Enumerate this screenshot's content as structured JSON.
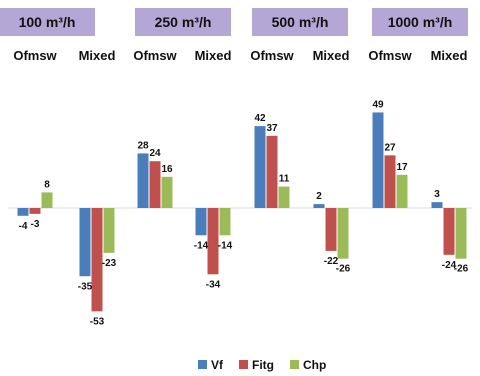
{
  "chart_data": {
    "type": "bar",
    "groups": [
      {
        "header": "100 m³/h",
        "clusters": [
          {
            "label": "Ofmsw",
            "values": [
              -4,
              -3,
              8
            ]
          },
          {
            "label": "Mixed",
            "values": [
              -35,
              -53,
              -23
            ]
          }
        ]
      },
      {
        "header": "250 m³/h",
        "clusters": [
          {
            "label": "Ofmsw",
            "values": [
              28,
              24,
              16
            ]
          },
          {
            "label": "Mixed",
            "values": [
              -14,
              -34,
              -14
            ]
          }
        ]
      },
      {
        "header": "500 m³/h",
        "clusters": [
          {
            "label": "Ofmsw",
            "values": [
              42,
              37,
              11
            ]
          },
          {
            "label": "Mixed",
            "values": [
              2,
              -22,
              -26
            ]
          }
        ]
      },
      {
        "header": "1000 m³/h",
        "clusters": [
          {
            "label": "Ofmsw",
            "values": [
              49,
              27,
              17
            ]
          },
          {
            "label": "Mixed",
            "values": [
              3,
              -24,
              -26
            ]
          }
        ]
      }
    ],
    "series": [
      {
        "name": "Vf",
        "color": "#4a7ebb"
      },
      {
        "name": "Fitg",
        "color": "#c0504d"
      },
      {
        "name": "Chp",
        "color": "#9bbb59"
      }
    ],
    "legend_position": "bottom",
    "header_color": "#b4a7d6",
    "grid": false
  }
}
